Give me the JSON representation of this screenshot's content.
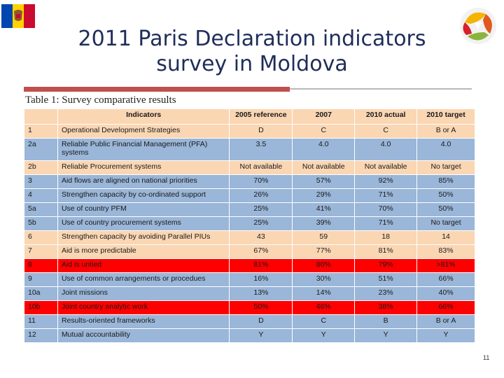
{
  "title": "2011 Paris Declaration indicators survey in Moldova",
  "table": {
    "caption": "Table 1: Survey comparative results",
    "headers": [
      "",
      "Indicators",
      "2005 reference",
      "2007",
      "2010 actual",
      "2010 target"
    ],
    "rows": [
      {
        "id": "1",
        "indicator": "Operational Development Strategies",
        "ref2005": "D",
        "y2007": "C",
        "actual2010": "C",
        "target2010": "B or A",
        "color": "orange"
      },
      {
        "id": "2a",
        "indicator": "Reliable Public Financial Management (PFA) systems",
        "ref2005": "3.5",
        "y2007": "4.0",
        "actual2010": "4.0",
        "target2010": "4.0",
        "color": "blue"
      },
      {
        "id": "2b",
        "indicator": "Reliable Procurement systems",
        "ref2005": "Not available",
        "y2007": "Not available",
        "actual2010": "Not available",
        "target2010": "No target",
        "color": "orange"
      },
      {
        "id": "3",
        "indicator": "Aid flows are aligned on national priorities",
        "ref2005": "70%",
        "y2007": "57%",
        "actual2010": "92%",
        "target2010": "85%",
        "color": "blue"
      },
      {
        "id": "4",
        "indicator": "Strengthen capacity by co-ordinated support",
        "ref2005": "26%",
        "y2007": "29%",
        "actual2010": "71%",
        "target2010": "50%",
        "color": "blue"
      },
      {
        "id": "5a",
        "indicator": "Use of country PFM",
        "ref2005": "25%",
        "y2007": "41%",
        "actual2010": "70%",
        "target2010": "50%",
        "color": "blue"
      },
      {
        "id": "5b",
        "indicator": "Use of country procurement systems",
        "ref2005": "25%",
        "y2007": "39%",
        "actual2010": "71%",
        "target2010": "No target",
        "color": "blue"
      },
      {
        "id": "6",
        "indicator": "Strengthen capacity by avoiding Parallel PIUs",
        "ref2005": "43",
        "y2007": "59",
        "actual2010": "18",
        "target2010": "14",
        "color": "orange"
      },
      {
        "id": "7",
        "indicator": "Aid is more predictable",
        "ref2005": "67%",
        "y2007": "77%",
        "actual2010": "81%",
        "target2010": "83%",
        "color": "orange"
      },
      {
        "id": "8",
        "indicator": "Aid is untied",
        "ref2005": "81%",
        "y2007": "80%",
        "actual2010": "79%",
        "target2010": ">81%",
        "color": "red"
      },
      {
        "id": "9",
        "indicator": "Use of common arrangements or procedues",
        "ref2005": "16%",
        "y2007": "30%",
        "actual2010": "51%",
        "target2010": "66%",
        "color": "blue"
      },
      {
        "id": "10a",
        "indicator": "Joint missions",
        "ref2005": "13%",
        "y2007": "14%",
        "actual2010": "23%",
        "target2010": "40%",
        "color": "blue"
      },
      {
        "id": "10b",
        "indicator": "Joint country analytic work",
        "ref2005": "50%",
        "y2007": "46%",
        "actual2010": "38%",
        "target2010": "66%",
        "color": "red"
      },
      {
        "id": "11",
        "indicator": "Results-oriented frameworks",
        "ref2005": "D",
        "y2007": "C",
        "actual2010": "B",
        "target2010": "B or A",
        "color": "blue"
      },
      {
        "id": "12",
        "indicator": "Mutual accountability",
        "ref2005": "Y",
        "y2007": "Y",
        "actual2010": "Y",
        "target2010": "Y",
        "color": "blue"
      }
    ]
  },
  "page_number": "11",
  "colors": {
    "orange": "#fad6b3",
    "blue": "#9ab6d8",
    "red": "#ff0000",
    "title": "#1f2d5a",
    "accent": "#c0504d"
  },
  "icons": {
    "flag": "moldova-flag-icon",
    "logo": "paris-declaration-logo-icon"
  }
}
